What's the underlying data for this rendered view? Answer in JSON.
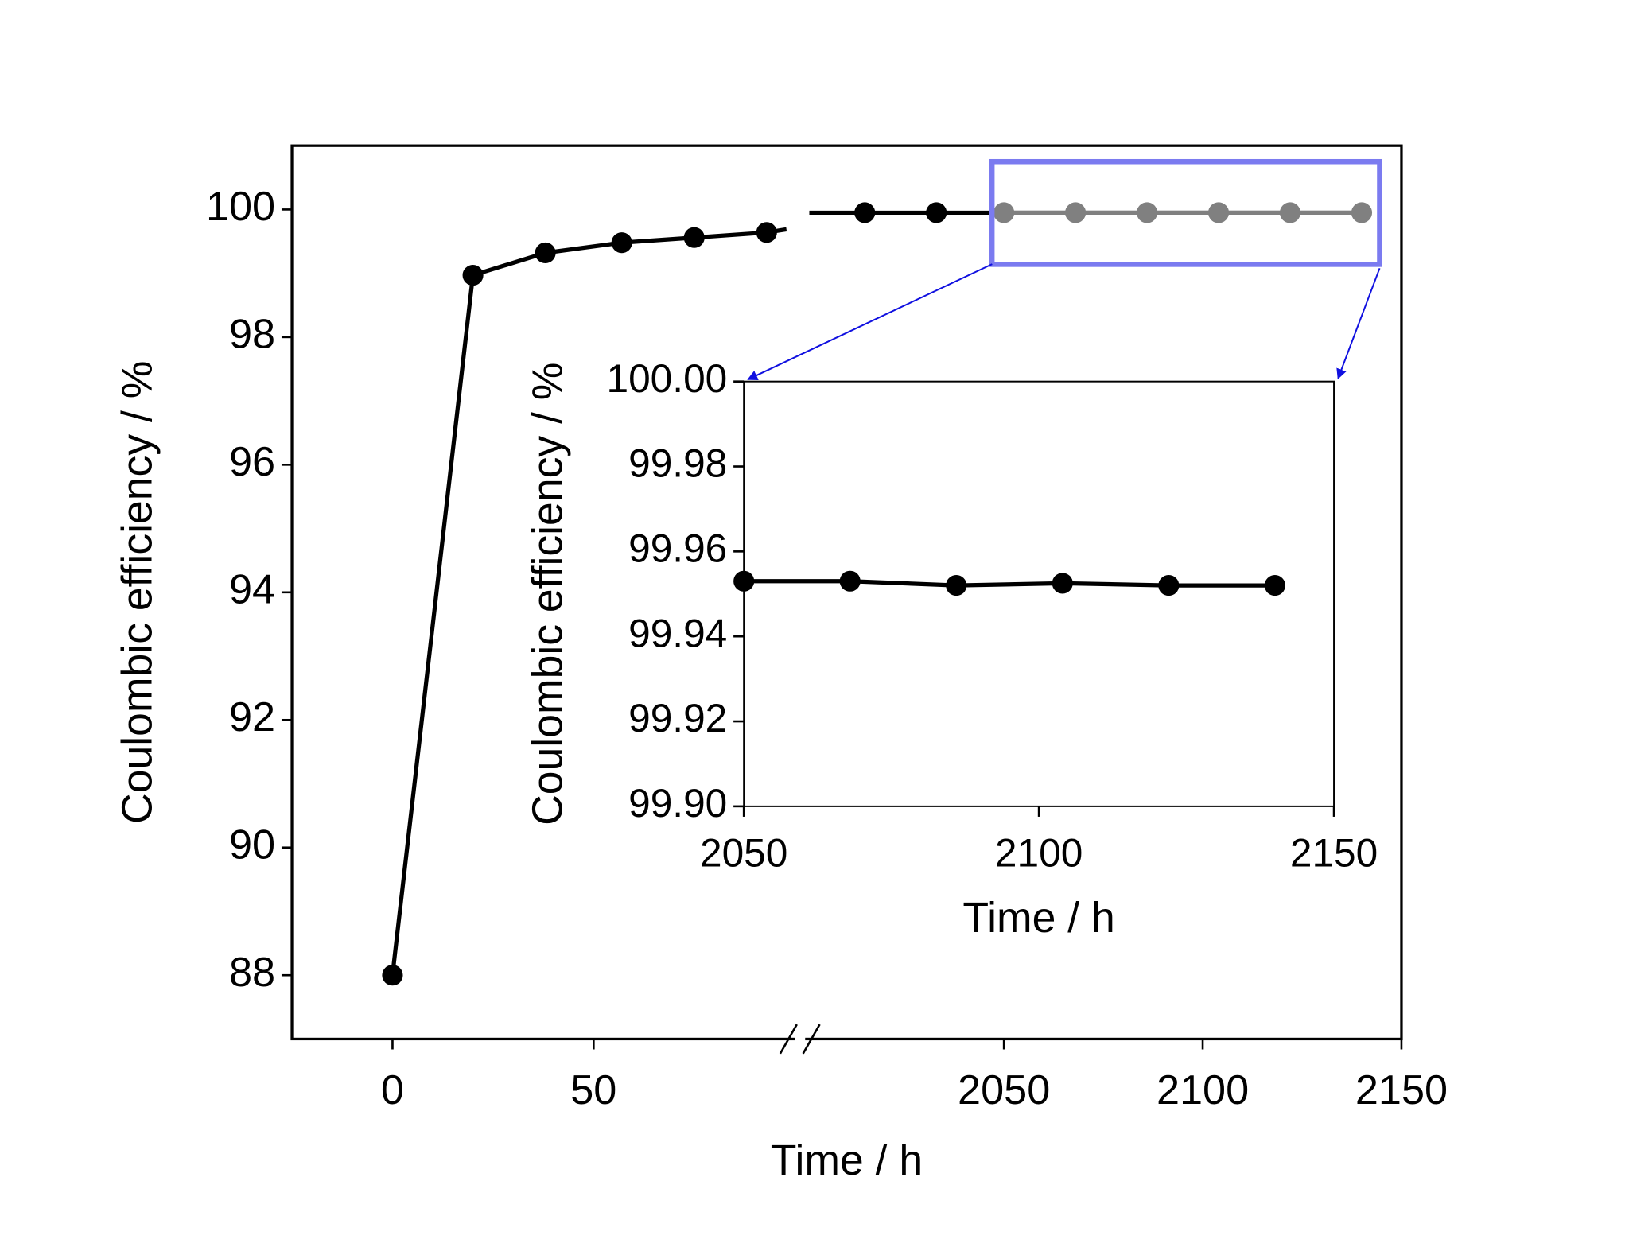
{
  "chart_data": [
    {
      "type": "line",
      "x_label": "Time / h",
      "y_label": "Coulombic efficiency / %",
      "x": [
        0,
        20,
        38,
        57,
        75,
        93,
        2015,
        2033,
        2050,
        2068,
        2086,
        2104,
        2122,
        2140
      ],
      "series": [
        {
          "color": "#000000",
          "values": [
            88,
            98.97,
            99.32,
            99.48,
            99.56,
            99.64,
            99.95,
            99.95,
            99.95,
            99.95,
            99.95,
            99.95,
            99.95,
            99.95
          ]
        }
      ],
      "xlim": [
        -25,
        2150
      ],
      "x_break": [
        100,
        2000
      ],
      "xticks": [
        0,
        50,
        2050,
        2100,
        2150
      ],
      "ylim": [
        87,
        101
      ],
      "yticks": [
        88,
        90,
        92,
        94,
        96,
        98,
        100
      ],
      "highlight": {
        "xlim": [
          2047,
          2144.5
        ],
        "ylim": [
          99.14,
          100.75
        ],
        "color": "#808080",
        "box_color": "#7b7bf0"
      }
    },
    {
      "type": "line",
      "x_label": "Time / h",
      "y_label": "Coulombic efficiency / %",
      "x": [
        2050,
        2068,
        2086,
        2104,
        2122,
        2140
      ],
      "series": [
        {
          "color": "#000000",
          "values": [
            99.953,
            99.953,
            99.952,
            99.9525,
            99.952,
            99.952
          ]
        }
      ],
      "xlim": [
        2050,
        2150
      ],
      "xticks": [
        2050,
        2100,
        2150
      ],
      "ylim": [
        99.9,
        100
      ],
      "yticks": [
        {
          "value": 99.9,
          "label": "99.90"
        },
        99.92,
        99.94,
        99.96,
        99.98,
        {
          "value": 100,
          "label": "100.00"
        }
      ]
    }
  ]
}
